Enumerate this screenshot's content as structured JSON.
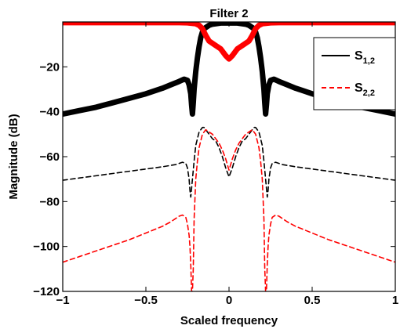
{
  "chart_data": {
    "type": "line",
    "title": "Filter 2",
    "xlabel": "Scaled frequency",
    "ylabel": "Magnitude (dB)",
    "xlim": [
      -1,
      1
    ],
    "ylim": [
      -120,
      0
    ],
    "xticks": [
      -1,
      -0.5,
      0,
      0.5,
      1
    ],
    "xtick_labels": [
      "−1",
      "−0.5",
      "0",
      "0.5",
      "1"
    ],
    "yticks": [
      -120,
      -100,
      -80,
      -60,
      -40,
      -20
    ],
    "ytick_labels": [
      "−120",
      "−100",
      "−80",
      "−60",
      "−40",
      "−20"
    ],
    "grid": false,
    "legend_position": "top-right",
    "legend": [
      {
        "base": "S",
        "sub": "1,2",
        "color": "#000000",
        "style": "solid"
      },
      {
        "base": "S",
        "sub": "2,2",
        "color": "#ff0000",
        "style": "dashed"
      }
    ],
    "series": [
      {
        "color": "#000000",
        "style": "markers",
        "width": 7,
        "x": [
          -1,
          -0.9,
          -0.8,
          -0.7,
          -0.6,
          -0.5,
          -0.4,
          -0.35,
          -0.3,
          -0.27,
          -0.25,
          -0.24,
          -0.23,
          -0.225,
          -0.22,
          -0.215,
          -0.21,
          -0.2,
          -0.19,
          -0.18,
          -0.17,
          -0.16,
          -0.15,
          -0.12,
          -0.1,
          -0.05,
          0,
          0.05,
          0.1,
          0.12,
          0.15,
          0.16,
          0.17,
          0.18,
          0.19,
          0.2,
          0.21,
          0.215,
          0.22,
          0.225,
          0.23,
          0.24,
          0.25,
          0.27,
          0.3,
          0.35,
          0.4,
          0.5,
          0.6,
          0.7,
          0.8,
          0.9,
          1
        ],
        "y": [
          -41,
          -39.5,
          -38,
          -36,
          -34,
          -32,
          -29.5,
          -28,
          -26.5,
          -25.5,
          -26,
          -28,
          -32,
          -37,
          -41,
          -36,
          -30,
          -22,
          -16,
          -11,
          -7,
          -4.5,
          -3,
          -1.5,
          -1,
          -0.5,
          -0.5,
          -0.5,
          -1,
          -1.5,
          -3,
          -4.5,
          -7,
          -11,
          -16,
          -22,
          -30,
          -36,
          -41,
          -37,
          -32,
          -28,
          -26,
          -25.5,
          -26.5,
          -28,
          -29.5,
          -32,
          -34,
          -36,
          -38,
          -39.5,
          -41
        ]
      },
      {
        "color": "#ff0000",
        "style": "markers",
        "width": 7,
        "x": [
          -1,
          -0.5,
          -0.3,
          -0.25,
          -0.2,
          -0.18,
          -0.16,
          -0.14,
          -0.12,
          -0.1,
          -0.08,
          -0.05,
          -0.02,
          0,
          0.02,
          0.05,
          0.08,
          0.1,
          0.12,
          0.14,
          0.16,
          0.18,
          0.2,
          0.25,
          0.3,
          0.5,
          1
        ],
        "y": [
          -0.3,
          -0.3,
          -0.3,
          -0.4,
          -0.8,
          -1.5,
          -3,
          -6,
          -8.5,
          -9.5,
          -10.5,
          -12,
          -15,
          -16.5,
          -15,
          -12,
          -10.5,
          -9.5,
          -8.5,
          -6,
          -3,
          -1.5,
          -0.8,
          -0.4,
          -0.3,
          -0.3,
          -0.3
        ]
      },
      {
        "color": "#000000",
        "style": "dashed",
        "width": 1.6,
        "x": [
          -1,
          -0.9,
          -0.8,
          -0.7,
          -0.6,
          -0.5,
          -0.4,
          -0.32,
          -0.28,
          -0.26,
          -0.25,
          -0.24,
          -0.235,
          -0.23,
          -0.22,
          -0.21,
          -0.2,
          -0.18,
          -0.16,
          -0.15,
          -0.14,
          -0.12,
          -0.1,
          -0.08,
          -0.06,
          -0.04,
          -0.02,
          0,
          0.02,
          0.04,
          0.06,
          0.08,
          0.1,
          0.12,
          0.14,
          0.15,
          0.16,
          0.18,
          0.2,
          0.21,
          0.22,
          0.23,
          0.235,
          0.24,
          0.25,
          0.26,
          0.28,
          0.32,
          0.4,
          0.5,
          0.6,
          0.7,
          0.8,
          0.9,
          1
        ],
        "y": [
          -70.5,
          -69.5,
          -68.5,
          -67.5,
          -66.5,
          -65.5,
          -64.5,
          -63.5,
          -62.5,
          -63,
          -65,
          -70,
          -75,
          -78,
          -70,
          -62,
          -55,
          -49,
          -47,
          -47,
          -48,
          -50,
          -52,
          -53,
          -56,
          -60,
          -65,
          -69,
          -65,
          -60,
          -56,
          -53,
          -52,
          -50,
          -48,
          -47,
          -47,
          -49,
          -55,
          -62,
          -70,
          -78,
          -75,
          -70,
          -65,
          -63,
          -62.5,
          -63.5,
          -64.5,
          -65.5,
          -66.5,
          -67.5,
          -68.5,
          -69.5,
          -70.5
        ]
      },
      {
        "color": "#ff0000",
        "style": "dashed",
        "width": 1.6,
        "x": [
          -1,
          -0.9,
          -0.8,
          -0.7,
          -0.6,
          -0.5,
          -0.45,
          -0.4,
          -0.35,
          -0.32,
          -0.3,
          -0.28,
          -0.26,
          -0.25,
          -0.24,
          -0.235,
          -0.23,
          -0.225,
          -0.22,
          -0.215,
          -0.21,
          -0.2,
          -0.19,
          -0.18,
          -0.16,
          -0.14,
          -0.12,
          -0.1,
          -0.08,
          -0.06,
          -0.04,
          -0.02,
          0,
          0.02,
          0.04,
          0.06,
          0.08,
          0.1,
          0.12,
          0.14,
          0.16,
          0.18,
          0.19,
          0.2,
          0.21,
          0.215,
          0.22,
          0.225,
          0.23,
          0.235,
          0.24,
          0.25,
          0.26,
          0.28,
          0.3,
          0.32,
          0.35,
          0.4,
          0.45,
          0.5,
          0.6,
          0.7,
          0.8,
          0.9,
          1
        ],
        "y": [
          -107,
          -104.5,
          -102,
          -99.5,
          -97,
          -94,
          -92.5,
          -91,
          -89,
          -87.5,
          -86.5,
          -86,
          -87,
          -90,
          -95,
          -100,
          -108,
          -120,
          -120,
          -110,
          -88,
          -70,
          -62,
          -56,
          -50,
          -48,
          -49,
          -50,
          -52,
          -54,
          -57,
          -61,
          -66,
          -61,
          -57,
          -54,
          -52,
          -50,
          -49,
          -48,
          -50,
          -56,
          -62,
          -70,
          -88,
          -110,
          -120,
          -120,
          -108,
          -100,
          -95,
          -90,
          -87,
          -86,
          -86.5,
          -87.5,
          -89,
          -91,
          -92.5,
          -94,
          -97,
          -99.5,
          -102,
          -104.5,
          -107
        ]
      }
    ]
  }
}
